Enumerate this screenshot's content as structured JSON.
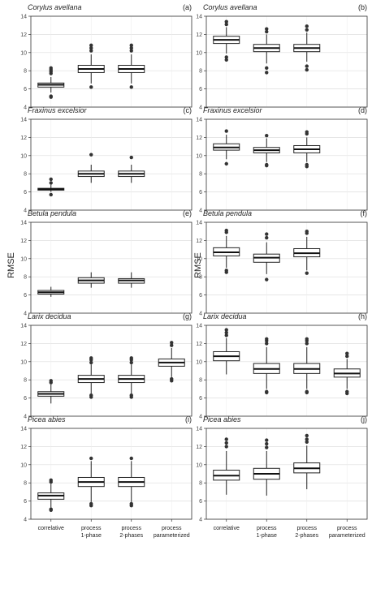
{
  "figure": {
    "ylabel": "RMSE",
    "categories": [
      "correlative",
      "process 1-phase",
      "process 2-phases",
      "process parameterized"
    ],
    "xtick_lines": [
      [
        "correlative"
      ],
      [
        "process",
        "1-phase"
      ],
      [
        "process",
        "2-phases"
      ],
      [
        "process",
        "parameterized"
      ]
    ]
  },
  "chart_data": [
    {
      "type": "box",
      "panel": "(a)",
      "species": "Corylus avellana",
      "ylim": [
        4,
        14
      ],
      "yticks": [
        4,
        6,
        8,
        10,
        12,
        14
      ],
      "boxes": [
        {
          "category": "correlative",
          "whisker_low": 5.6,
          "q1": 6.2,
          "median": 6.45,
          "q3": 6.65,
          "whisker_high": 7.3,
          "outliers": [
            5.1,
            5.2,
            7.7,
            7.9,
            8.1,
            8.3
          ]
        },
        {
          "category": "process 1-phase",
          "whisker_low": 6.6,
          "q1": 7.8,
          "median": 8.2,
          "q3": 8.6,
          "whisker_high": 9.8,
          "outliers": [
            6.2,
            10.2,
            10.5,
            10.8
          ]
        },
        {
          "category": "process 2-phases",
          "whisker_low": 6.6,
          "q1": 7.8,
          "median": 8.2,
          "q3": 8.6,
          "whisker_high": 9.8,
          "outliers": [
            6.2,
            10.2,
            10.5,
            10.8
          ]
        }
      ]
    },
    {
      "type": "box",
      "panel": "(b)",
      "species": "Corylus avellana",
      "ylim": [
        4,
        14
      ],
      "yticks": [
        4,
        6,
        8,
        10,
        12,
        14
      ],
      "boxes": [
        {
          "category": "correlative",
          "whisker_low": 9.9,
          "q1": 11.0,
          "median": 11.4,
          "q3": 11.8,
          "whisker_high": 12.8,
          "outliers": [
            9.2,
            9.5,
            13.1,
            13.4
          ]
        },
        {
          "category": "process 1-phase",
          "whisker_low": 8.8,
          "q1": 10.1,
          "median": 10.5,
          "q3": 10.9,
          "whisker_high": 12.0,
          "outliers": [
            7.8,
            8.3,
            12.3,
            12.6
          ]
        },
        {
          "category": "process 2-phases",
          "whisker_low": 9.0,
          "q1": 10.1,
          "median": 10.5,
          "q3": 10.9,
          "whisker_high": 12.2,
          "outliers": [
            8.1,
            8.5,
            12.5,
            12.9
          ]
        }
      ]
    },
    {
      "type": "box",
      "panel": "(c)",
      "species": "Fraxinus excelsior",
      "ylim": [
        4,
        14
      ],
      "yticks": [
        4,
        6,
        8,
        10,
        12,
        14
      ],
      "boxes": [
        {
          "category": "correlative",
          "whisker_low": 6.0,
          "q1": 6.2,
          "median": 6.3,
          "q3": 6.4,
          "whisker_high": 6.8,
          "outliers": [
            5.7,
            7.0,
            7.4
          ]
        },
        {
          "category": "process 1-phase",
          "whisker_low": 7.0,
          "q1": 7.7,
          "median": 8.0,
          "q3": 8.3,
          "whisker_high": 9.0,
          "outliers": [
            10.1
          ]
        },
        {
          "category": "process 2-phases",
          "whisker_low": 7.0,
          "q1": 7.7,
          "median": 8.0,
          "q3": 8.3,
          "whisker_high": 9.0,
          "outliers": [
            9.8
          ]
        }
      ]
    },
    {
      "type": "box",
      "panel": "(d)",
      "species": "Fraxinus excelsior",
      "ylim": [
        4,
        14
      ],
      "yticks": [
        4,
        6,
        8,
        10,
        12,
        14
      ],
      "boxes": [
        {
          "category": "correlative",
          "whisker_low": 9.6,
          "q1": 10.6,
          "median": 10.9,
          "q3": 11.3,
          "whisker_high": 12.3,
          "outliers": [
            9.1,
            12.7
          ]
        },
        {
          "category": "process 1-phase",
          "whisker_low": 9.3,
          "q1": 10.3,
          "median": 10.6,
          "q3": 10.9,
          "whisker_high": 11.9,
          "outliers": [
            8.9,
            9.0,
            12.2
          ]
        },
        {
          "category": "process 2-phases",
          "whisker_low": 9.3,
          "q1": 10.3,
          "median": 10.7,
          "q3": 11.1,
          "whisker_high": 12.0,
          "outliers": [
            8.8,
            9.0,
            12.4,
            12.6
          ]
        }
      ]
    },
    {
      "type": "box",
      "panel": "(e)",
      "species": "Betula pendula",
      "ylim": [
        4,
        14
      ],
      "yticks": [
        4,
        6,
        8,
        10,
        12,
        14
      ],
      "boxes": [
        {
          "category": "correlative",
          "whisker_low": 5.8,
          "q1": 6.1,
          "median": 6.3,
          "q3": 6.5,
          "whisker_high": 6.9,
          "outliers": []
        },
        {
          "category": "process 1-phase",
          "whisker_low": 6.8,
          "q1": 7.3,
          "median": 7.6,
          "q3": 7.9,
          "whisker_high": 8.5,
          "outliers": []
        },
        {
          "category": "process 2-phases",
          "whisker_low": 6.8,
          "q1": 7.3,
          "median": 7.6,
          "q3": 7.8,
          "whisker_high": 8.5,
          "outliers": []
        }
      ]
    },
    {
      "type": "box",
      "panel": "(f)",
      "species": "Betula pendula",
      "ylim": [
        4,
        14
      ],
      "yticks": [
        4,
        6,
        8,
        10,
        12,
        14
      ],
      "boxes": [
        {
          "category": "correlative",
          "whisker_low": 9.0,
          "q1": 10.3,
          "median": 10.7,
          "q3": 11.2,
          "whisker_high": 12.5,
          "outliers": [
            8.5,
            8.7,
            12.9,
            13.1
          ]
        },
        {
          "category": "process 1-phase",
          "whisker_low": 8.3,
          "q1": 9.6,
          "median": 10.1,
          "q3": 10.5,
          "whisker_high": 11.8,
          "outliers": [
            7.7,
            12.3,
            12.7
          ]
        },
        {
          "category": "process 2-phases",
          "whisker_low": 8.7,
          "q1": 10.2,
          "median": 10.6,
          "q3": 11.1,
          "whisker_high": 12.4,
          "outliers": [
            8.4,
            12.8,
            13.0
          ]
        }
      ]
    },
    {
      "type": "box",
      "panel": "(g)",
      "species": "Larix decidua",
      "ylim": [
        4,
        14
      ],
      "yticks": [
        4,
        6,
        8,
        10,
        12,
        14
      ],
      "boxes": [
        {
          "category": "correlative",
          "whisker_low": 5.4,
          "q1": 6.2,
          "median": 6.45,
          "q3": 6.7,
          "whisker_high": 7.5,
          "outliers": [
            7.7,
            7.9
          ]
        },
        {
          "category": "process 1-phase",
          "whisker_low": 6.5,
          "q1": 7.7,
          "median": 8.1,
          "q3": 8.5,
          "whisker_high": 9.7,
          "outliers": [
            6.1,
            6.3,
            9.9,
            10.2,
            10.4
          ]
        },
        {
          "category": "process 2-phases",
          "whisker_low": 6.5,
          "q1": 7.7,
          "median": 8.1,
          "q3": 8.5,
          "whisker_high": 9.7,
          "outliers": [
            6.1,
            6.3,
            9.9,
            10.2,
            10.4
          ]
        },
        {
          "category": "process parameterized",
          "whisker_low": 8.3,
          "q1": 9.5,
          "median": 9.9,
          "q3": 10.3,
          "whisker_high": 11.5,
          "outliers": [
            7.9,
            8.1,
            11.8,
            12.1
          ]
        }
      ]
    },
    {
      "type": "box",
      "panel": "(h)",
      "species": "Larix decidua",
      "ylim": [
        4,
        14
      ],
      "yticks": [
        4,
        6,
        8,
        10,
        12,
        14
      ],
      "boxes": [
        {
          "category": "correlative",
          "whisker_low": 8.6,
          "q1": 10.1,
          "median": 10.6,
          "q3": 11.1,
          "whisker_high": 12.6,
          "outliers": [
            12.9,
            13.2,
            13.5
          ]
        },
        {
          "category": "process 1-phase",
          "whisker_low": 7.0,
          "q1": 8.7,
          "median": 9.2,
          "q3": 9.8,
          "whisker_high": 11.6,
          "outliers": [
            6.6,
            6.7,
            12.0,
            12.3,
            12.5
          ]
        },
        {
          "category": "process 2-phases",
          "whisker_low": 7.0,
          "q1": 8.7,
          "median": 9.2,
          "q3": 9.8,
          "whisker_high": 11.6,
          "outliers": [
            6.6,
            6.7,
            12.0,
            12.3,
            12.5
          ]
        },
        {
          "category": "process parameterized",
          "whisker_low": 7.0,
          "q1": 8.3,
          "median": 8.7,
          "q3": 9.2,
          "whisker_high": 10.3,
          "outliers": [
            6.5,
            6.7,
            10.6,
            10.9
          ]
        }
      ]
    },
    {
      "type": "box",
      "panel": "(i)",
      "species": "Picea abies",
      "ylim": [
        4,
        14
      ],
      "yticks": [
        4,
        6,
        8,
        10,
        12,
        14
      ],
      "boxes": [
        {
          "category": "correlative",
          "whisker_low": 5.3,
          "q1": 6.2,
          "median": 6.6,
          "q3": 6.9,
          "whisker_high": 7.9,
          "outliers": [
            5.0,
            5.1,
            8.1,
            8.3
          ]
        },
        {
          "category": "process 1-phase",
          "whisker_low": 5.9,
          "q1": 7.6,
          "median": 8.1,
          "q3": 8.6,
          "whisker_high": 10.4,
          "outliers": [
            5.5,
            5.7,
            10.7
          ]
        },
        {
          "category": "process 2-phases",
          "whisker_low": 5.9,
          "q1": 7.6,
          "median": 8.1,
          "q3": 8.6,
          "whisker_high": 10.4,
          "outliers": [
            5.5,
            5.7,
            10.7
          ]
        }
      ]
    },
    {
      "type": "box",
      "panel": "(j)",
      "species": "Picea abies",
      "ylim": [
        4,
        14
      ],
      "yticks": [
        4,
        6,
        8,
        10,
        12,
        14
      ],
      "boxes": [
        {
          "category": "correlative",
          "whisker_low": 6.7,
          "q1": 8.3,
          "median": 8.8,
          "q3": 9.4,
          "whisker_high": 11.5,
          "outliers": [
            12.0,
            12.4,
            12.8
          ]
        },
        {
          "category": "process 1-phase",
          "whisker_low": 6.6,
          "q1": 8.4,
          "median": 9.0,
          "q3": 9.6,
          "whisker_high": 11.5,
          "outliers": [
            11.9,
            12.3,
            12.7
          ]
        },
        {
          "category": "process 2-phases",
          "whisker_low": 7.3,
          "q1": 9.1,
          "median": 9.6,
          "q3": 10.2,
          "whisker_high": 12.1,
          "outliers": [
            12.5,
            12.8,
            13.2
          ]
        }
      ]
    }
  ]
}
